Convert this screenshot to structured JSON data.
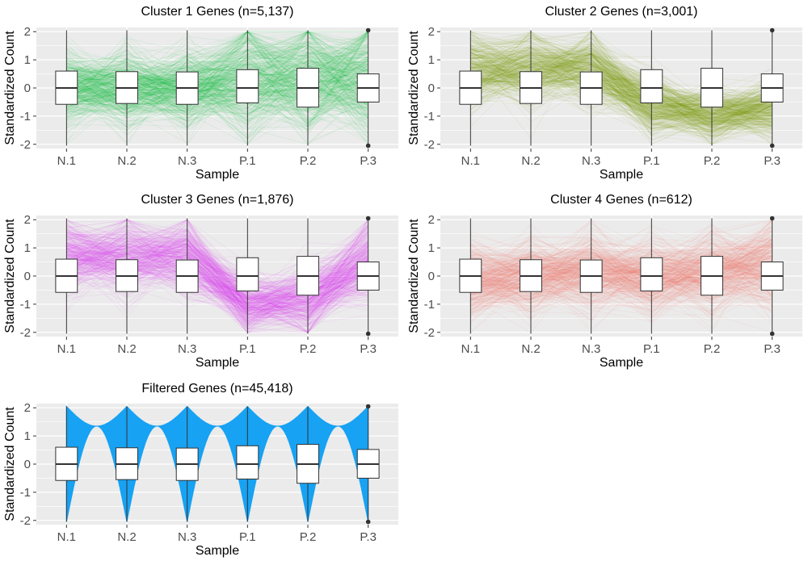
{
  "colors": {
    "panel_bg": "#ebebeb",
    "grid": "#ffffff",
    "box_edge": "#333333",
    "cluster1": "#00ba38",
    "cluster2": "#7f9f00",
    "cluster3": "#e040f0",
    "cluster4": "#f8766d",
    "filtered": "#17a2f3"
  },
  "chart_data": [
    {
      "type": "box",
      "title": "Cluster 1 Genes (n=5,137)",
      "xlabel": "Sample",
      "ylabel": "Standardized Count",
      "categories": [
        "N.1",
        "N.2",
        "N.3",
        "P.1",
        "P.2",
        "P.3"
      ],
      "yticks": [
        -2,
        -1,
        0,
        1,
        2
      ],
      "ylim": [
        -2.15,
        2.15
      ],
      "grid": true,
      "color_key": "cluster1",
      "boxes": [
        {
          "q1": -0.58,
          "median": 0,
          "q3": 0.6,
          "min": -2.05,
          "max": 2.05
        },
        {
          "q1": -0.55,
          "median": 0,
          "q3": 0.58,
          "min": -2.05,
          "max": 2.05
        },
        {
          "q1": -0.58,
          "median": 0,
          "q3": 0.57,
          "min": -2.05,
          "max": 2.05
        },
        {
          "q1": -0.53,
          "median": 0,
          "q3": 0.65,
          "min": -2.05,
          "max": 2.05
        },
        {
          "q1": -0.68,
          "median": 0,
          "q3": 0.7,
          "min": -2.05,
          "max": 2.05
        },
        {
          "q1": -0.5,
          "median": 0,
          "q3": 0.5,
          "min": -2.05,
          "max": 2.05
        }
      ],
      "outliers": [
        {
          "category": "P.3",
          "y": 2.05
        },
        {
          "category": "P.3",
          "y": -2.05
        }
      ],
      "profile_center": [
        0.0,
        0.0,
        0.0,
        0.4,
        0.4,
        0.4
      ],
      "profile_spread": [
        0.9,
        0.9,
        0.9,
        1.4,
        1.4,
        1.4
      ]
    },
    {
      "type": "box",
      "title": "Cluster 2 Genes (n=3,001)",
      "xlabel": "Sample",
      "ylabel": "Standardized Count",
      "categories": [
        "N.1",
        "N.2",
        "N.3",
        "P.1",
        "P.2",
        "P.3"
      ],
      "yticks": [
        -2,
        -1,
        0,
        1,
        2
      ],
      "ylim": [
        -2.15,
        2.15
      ],
      "grid": true,
      "color_key": "cluster2",
      "boxes": [
        {
          "q1": -0.58,
          "median": 0,
          "q3": 0.6,
          "min": -2.05,
          "max": 2.05
        },
        {
          "q1": -0.55,
          "median": 0,
          "q3": 0.58,
          "min": -2.05,
          "max": 2.05
        },
        {
          "q1": -0.58,
          "median": 0,
          "q3": 0.57,
          "min": -2.05,
          "max": 2.05
        },
        {
          "q1": -0.53,
          "median": 0,
          "q3": 0.65,
          "min": -2.05,
          "max": 2.05
        },
        {
          "q1": -0.68,
          "median": 0,
          "q3": 0.7,
          "min": -2.05,
          "max": 2.05
        },
        {
          "q1": -0.5,
          "median": 0,
          "q3": 0.5,
          "min": -2.05,
          "max": 2.05
        }
      ],
      "outliers": [
        {
          "category": "P.3",
          "y": 2.05
        },
        {
          "category": "P.3",
          "y": -2.05
        }
      ],
      "profile_center": [
        0.7,
        0.7,
        0.7,
        -0.6,
        -1.0,
        -0.7
      ],
      "profile_spread": [
        0.9,
        0.9,
        0.9,
        0.7,
        0.6,
        0.7
      ]
    },
    {
      "type": "box",
      "title": "Cluster 3 Genes (n=1,876)",
      "xlabel": "Sample",
      "ylabel": "Standardized Count",
      "categories": [
        "N.1",
        "N.2",
        "N.3",
        "P.1",
        "P.2",
        "P.3"
      ],
      "yticks": [
        -2,
        -1,
        0,
        1,
        2
      ],
      "ylim": [
        -2.15,
        2.15
      ],
      "grid": true,
      "color_key": "cluster3",
      "boxes": [
        {
          "q1": -0.58,
          "median": 0,
          "q3": 0.6,
          "min": -2.05,
          "max": 2.05
        },
        {
          "q1": -0.55,
          "median": 0,
          "q3": 0.58,
          "min": -2.05,
          "max": 2.05
        },
        {
          "q1": -0.58,
          "median": 0,
          "q3": 0.57,
          "min": -2.05,
          "max": 2.05
        },
        {
          "q1": -0.53,
          "median": 0,
          "q3": 0.65,
          "min": -2.05,
          "max": 2.05
        },
        {
          "q1": -0.68,
          "median": 0,
          "q3": 0.7,
          "min": -2.05,
          "max": 2.05
        },
        {
          "q1": -0.5,
          "median": 0,
          "q3": 0.5,
          "min": -2.05,
          "max": 2.05
        }
      ],
      "outliers": [
        {
          "category": "P.3",
          "y": 2.05
        },
        {
          "category": "P.3",
          "y": -2.05
        }
      ],
      "profile_center": [
        0.7,
        0.7,
        0.7,
        -1.0,
        -0.8,
        0.5
      ],
      "profile_spread": [
        0.9,
        0.9,
        0.9,
        0.7,
        0.8,
        1.0
      ]
    },
    {
      "type": "box",
      "title": "Cluster 4 Genes (n=612)",
      "xlabel": "Sample",
      "ylabel": "Standardized Count",
      "categories": [
        "N.1",
        "N.2",
        "N.3",
        "P.1",
        "P.2",
        "P.3"
      ],
      "yticks": [
        -2,
        -1,
        0,
        1,
        2
      ],
      "ylim": [
        -2.15,
        2.15
      ],
      "grid": true,
      "color_key": "cluster4",
      "boxes": [
        {
          "q1": -0.58,
          "median": 0,
          "q3": 0.6,
          "min": -2.05,
          "max": 2.05
        },
        {
          "q1": -0.55,
          "median": 0,
          "q3": 0.58,
          "min": -2.05,
          "max": 2.05
        },
        {
          "q1": -0.58,
          "median": 0,
          "q3": 0.57,
          "min": -2.05,
          "max": 2.05
        },
        {
          "q1": -0.53,
          "median": 0,
          "q3": 0.65,
          "min": -2.05,
          "max": 2.05
        },
        {
          "q1": -0.68,
          "median": 0,
          "q3": 0.7,
          "min": -2.05,
          "max": 2.05
        },
        {
          "q1": -0.5,
          "median": 0,
          "q3": 0.5,
          "min": -2.05,
          "max": 2.05
        }
      ],
      "outliers": [
        {
          "category": "P.3",
          "y": 2.05
        },
        {
          "category": "P.3",
          "y": -2.05
        }
      ],
      "profile_center": [
        -0.2,
        0.0,
        0.2,
        0.0,
        0.1,
        0.4
      ],
      "profile_spread": [
        0.9,
        0.9,
        1.0,
        0.9,
        1.0,
        1.1
      ]
    },
    {
      "type": "box",
      "title": "Filtered Genes (n=45,418)",
      "xlabel": "Sample",
      "ylabel": "Standardized Count",
      "categories": [
        "N.1",
        "N.2",
        "N.3",
        "P.1",
        "P.2",
        "P.3"
      ],
      "yticks": [
        -2,
        -1,
        0,
        1,
        2
      ],
      "ylim": [
        -2.15,
        2.15
      ],
      "grid": true,
      "color_key": "filtered",
      "band": {
        "outer": 2.05,
        "inner_top": 1.35,
        "inner_bottom": -1.35
      },
      "boxes": [
        {
          "q1": -0.58,
          "median": 0,
          "q3": 0.6,
          "min": -2.05,
          "max": 2.05
        },
        {
          "q1": -0.55,
          "median": 0,
          "q3": 0.58,
          "min": -2.05,
          "max": 2.05
        },
        {
          "q1": -0.58,
          "median": 0,
          "q3": 0.57,
          "min": -2.05,
          "max": 2.05
        },
        {
          "q1": -0.53,
          "median": 0,
          "q3": 0.65,
          "min": -2.05,
          "max": 2.05
        },
        {
          "q1": -0.68,
          "median": 0,
          "q3": 0.7,
          "min": -2.05,
          "max": 2.05
        },
        {
          "q1": -0.5,
          "median": 0,
          "q3": 0.52,
          "min": -2.05,
          "max": 2.05
        }
      ],
      "outliers": [
        {
          "category": "P.3",
          "y": 2.05
        },
        {
          "category": "P.3",
          "y": -2.05
        }
      ]
    }
  ]
}
